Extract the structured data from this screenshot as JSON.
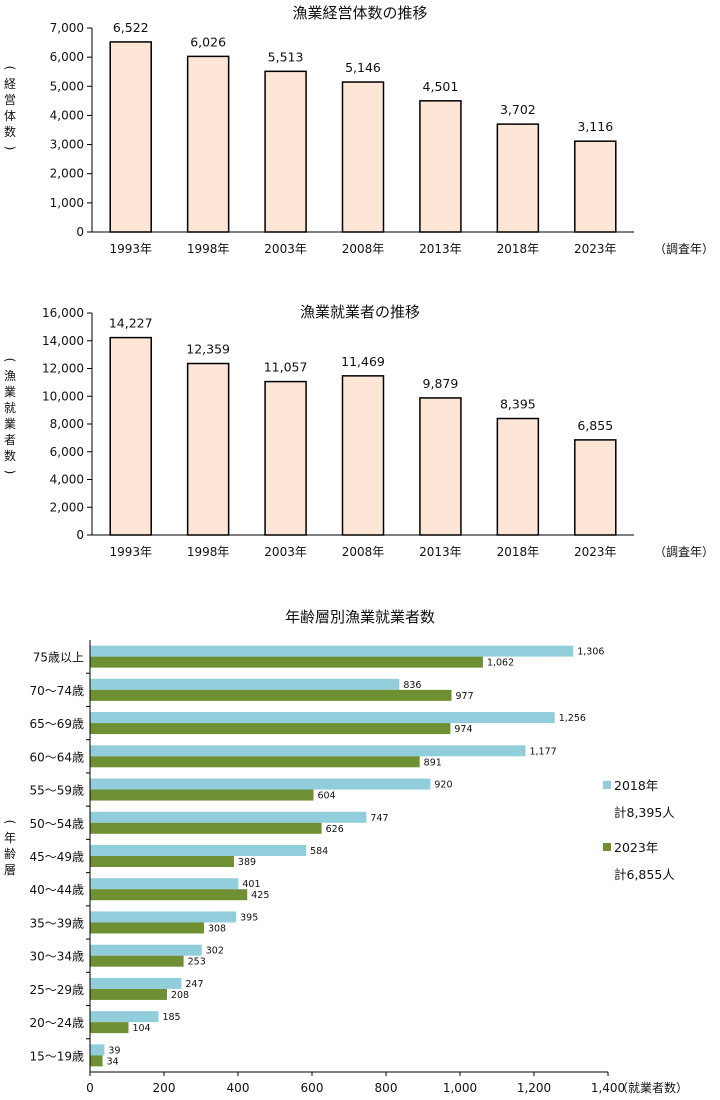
{
  "chart_data": [
    {
      "type": "bar",
      "title": "漁業経営体数の推移",
      "ylabel": [
        "経",
        "営",
        "体",
        "数"
      ],
      "xlabel": "（調査年）",
      "categories": [
        "1993年",
        "1998年",
        "2003年",
        "2008年",
        "2013年",
        "2018年",
        "2023年"
      ],
      "values": [
        6522,
        6026,
        5513,
        5146,
        4501,
        3702,
        3116
      ],
      "value_labels": [
        "6,522",
        "6,026",
        "5,513",
        "5,146",
        "4,501",
        "3,702",
        "3,116"
      ],
      "yticks": [
        "0",
        "1,000",
        "2,000",
        "3,000",
        "4,000",
        "5,000",
        "6,000",
        "7,000"
      ],
      "ylim": [
        0,
        7000
      ],
      "bar_color": "#fde6d6"
    },
    {
      "type": "bar",
      "title": "漁業就業者の推移",
      "ylabel": [
        "漁",
        "業",
        "就",
        "業",
        "者",
        "数"
      ],
      "xlabel": "（調査年）",
      "categories": [
        "1993年",
        "1998年",
        "2003年",
        "2008年",
        "2013年",
        "2018年",
        "2023年"
      ],
      "values": [
        14227,
        12359,
        11057,
        11469,
        9879,
        8395,
        6855
      ],
      "value_labels": [
        "14,227",
        "12,359",
        "11,057",
        "11,469",
        "9,879",
        "8,395",
        "6,855"
      ],
      "yticks": [
        "0",
        "2,000",
        "4,000",
        "6,000",
        "8,000",
        "10,000",
        "12,000",
        "14,000",
        "16,000"
      ],
      "ylim": [
        0,
        16000
      ],
      "bar_color": "#fde6d6"
    },
    {
      "type": "bar",
      "orientation": "horizontal",
      "title": "年齢層別漁業就業者数",
      "ylabel": [
        "年",
        "齢",
        "層"
      ],
      "xlabel": "（就業者数）",
      "categories": [
        "75歳以上",
        "70～74歳",
        "65～69歳",
        "60～64歳",
        "55～59歳",
        "50～54歳",
        "45～49歳",
        "40～44歳",
        "35～39歳",
        "30～34歳",
        "25～29歳",
        "20～24歳",
        "15～19歳"
      ],
      "xticks": [
        "0",
        "200",
        "400",
        "600",
        "800",
        "1,000",
        "1,200",
        "1,400"
      ],
      "xlim": [
        0,
        1400
      ],
      "series": [
        {
          "name": "2018年",
          "total": "計8,395人",
          "color": "#92cddc",
          "values": [
            1306,
            836,
            1256,
            1177,
            920,
            747,
            584,
            401,
            395,
            302,
            247,
            185,
            39
          ],
          "value_labels": [
            "1,306",
            "836",
            "1,256",
            "1,177",
            "920",
            "747",
            "584",
            "401",
            "395",
            "302",
            "247",
            "185",
            "39"
          ]
        },
        {
          "name": "2023年",
          "total": "計6,855人",
          "color": "#6e8f32",
          "values": [
            1062,
            977,
            974,
            891,
            604,
            626,
            389,
            425,
            308,
            253,
            208,
            104,
            34
          ],
          "value_labels": [
            "1,062",
            "977",
            "974",
            "891",
            "604",
            "626",
            "389",
            "425",
            "308",
            "253",
            "208",
            "104",
            "34"
          ]
        }
      ]
    }
  ]
}
